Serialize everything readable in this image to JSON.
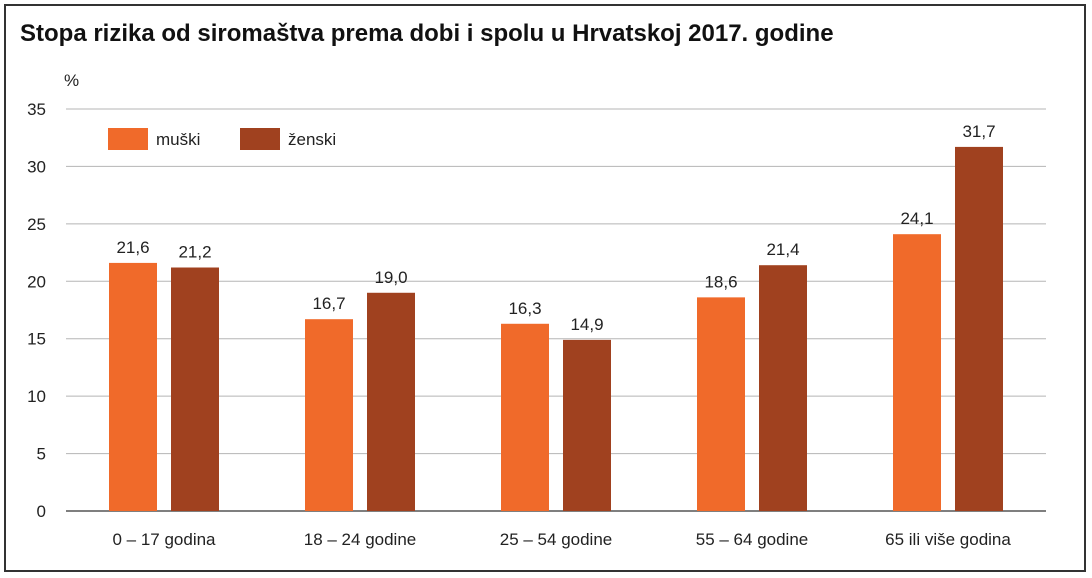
{
  "chart_data": {
    "type": "bar",
    "title": "Stopa rizika od siromaštva prema dobi i spolu u Hrvatskoj 2017. godine",
    "ylabel": "%",
    "xlabel": "",
    "ylim": [
      0,
      35
    ],
    "yticks": [
      0,
      5,
      10,
      15,
      20,
      25,
      30,
      35
    ],
    "grid": true,
    "legend_position": "top-left",
    "categories": [
      "0  – 17 godina",
      "18  – 24 godine",
      "25  – 54 godine",
      "55  – 64 godine",
      "65 ili više godina"
    ],
    "series": [
      {
        "name": "muški",
        "color": "#F06A2A",
        "values": [
          21.6,
          16.7,
          16.3,
          18.6,
          24.1
        ],
        "labels": [
          "21,6",
          "16,7",
          "16,3",
          "18,6",
          "24,1"
        ]
      },
      {
        "name": "ženski",
        "color": "#A0411F",
        "values": [
          21.2,
          19.0,
          14.9,
          21.4,
          31.7
        ],
        "labels": [
          "21,2",
          "19,0",
          "14,9",
          "21,4",
          "31,7"
        ]
      }
    ]
  }
}
